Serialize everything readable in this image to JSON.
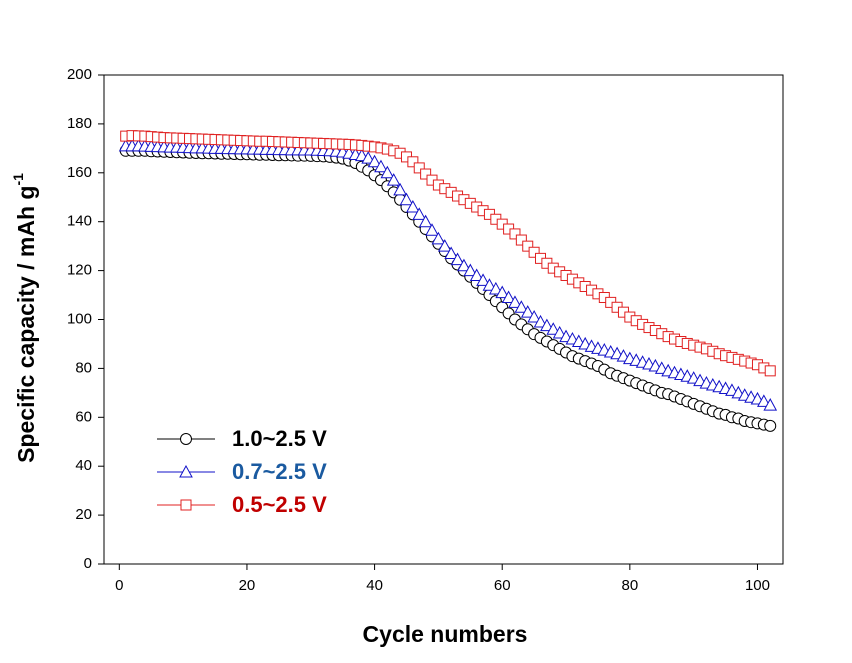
{
  "chart_data": {
    "type": "line",
    "xlabel": "Cycle numbers",
    "ylabel": "Specific capacity / mAh g",
    "ylabel_superscript": "-1",
    "x": [
      1,
      2,
      3,
      4,
      5,
      6,
      7,
      8,
      9,
      10,
      11,
      12,
      13,
      14,
      15,
      16,
      17,
      18,
      19,
      20,
      21,
      22,
      23,
      24,
      25,
      26,
      27,
      28,
      29,
      30,
      31,
      32,
      33,
      34,
      35,
      36,
      37,
      38,
      39,
      40,
      41,
      42,
      43,
      44,
      45,
      46,
      47,
      48,
      49,
      50,
      51,
      52,
      53,
      54,
      55,
      56,
      57,
      58,
      59,
      60,
      61,
      62,
      63,
      64,
      65,
      66,
      67,
      68,
      69,
      70,
      71,
      72,
      73,
      74,
      75,
      76,
      77,
      78,
      79,
      80,
      81,
      82,
      83,
      84,
      85,
      86,
      87,
      88,
      89,
      90,
      91,
      92,
      93,
      94,
      95,
      96,
      97,
      98,
      99,
      100,
      101,
      102
    ],
    "series": [
      {
        "name": "1.0~2.5 V",
        "color": "#000000",
        "label_color": "#000000",
        "marker": "circle",
        "values": [
          169,
          169,
          169,
          169,
          168.8,
          168.7,
          168.6,
          168.5,
          168.4,
          168.3,
          168.2,
          168.1,
          168,
          168,
          167.9,
          167.8,
          167.8,
          167.7,
          167.6,
          167.6,
          167.5,
          167.4,
          167.4,
          167.3,
          167.2,
          167.2,
          167.1,
          167,
          167,
          166.9,
          166.8,
          166.7,
          166.5,
          166.2,
          165.8,
          165,
          164,
          162.5,
          161,
          159,
          157,
          154.5,
          152,
          149,
          146,
          143,
          140,
          137,
          134,
          131,
          128,
          125,
          122.5,
          120,
          117.5,
          115,
          112.5,
          110,
          107.5,
          105,
          102.5,
          100,
          98,
          96,
          94,
          92.5,
          91,
          89.5,
          88,
          86.5,
          85,
          84,
          83,
          82,
          81,
          79.5,
          78,
          77,
          76,
          75,
          74,
          73,
          72,
          71,
          70,
          69.5,
          68.5,
          67.5,
          66.5,
          65.5,
          64.5,
          63.5,
          62.5,
          61.5,
          61,
          60,
          59.5,
          58.5,
          58,
          57.5,
          57,
          56.5
        ]
      },
      {
        "name": "0.7~2.5 V",
        "color": "#1010c8",
        "label_color": "#1a5aa0",
        "marker": "triangle",
        "values": [
          171,
          171,
          171,
          170.9,
          170.8,
          170.7,
          170.6,
          170.5,
          170.5,
          170.4,
          170.3,
          170.2,
          170.2,
          170.1,
          170,
          170,
          169.9,
          169.9,
          169.8,
          169.8,
          169.7,
          169.7,
          169.6,
          169.6,
          169.5,
          169.5,
          169.4,
          169.4,
          169.3,
          169.3,
          169.2,
          169.1,
          169,
          168.8,
          168.5,
          168,
          167.5,
          167,
          166,
          164.5,
          162.5,
          160,
          157,
          153,
          149,
          146,
          143,
          140,
          136.5,
          133,
          130,
          127,
          124.5,
          122,
          120,
          118,
          116,
          114,
          112.5,
          111,
          109,
          107,
          105,
          103,
          101,
          99,
          97.5,
          96,
          94.5,
          93,
          92,
          91,
          90,
          89,
          88.2,
          87.5,
          86.7,
          86,
          85,
          84,
          83.3,
          82.5,
          81.8,
          81,
          80,
          79,
          78.2,
          77.5,
          76.8,
          76,
          75,
          74,
          73.2,
          72.5,
          71.8,
          71,
          70,
          69,
          68.2,
          67.5,
          66.5,
          65
        ]
      },
      {
        "name": "0.5~2.5 V",
        "color": "#e02020",
        "label_color": "#c00000",
        "marker": "square",
        "values": [
          175,
          175.2,
          175.1,
          175,
          174.8,
          174.6,
          174.4,
          174.3,
          174.2,
          174.1,
          174,
          173.9,
          173.8,
          173.7,
          173.6,
          173.5,
          173.4,
          173.3,
          173.2,
          173.1,
          173,
          172.9,
          172.9,
          172.8,
          172.7,
          172.6,
          172.5,
          172.4,
          172.3,
          172.2,
          172.1,
          172,
          171.9,
          171.8,
          171.7,
          171.6,
          171.4,
          171.2,
          170.9,
          170.6,
          170.2,
          169.7,
          169,
          168,
          166.5,
          164.5,
          162,
          159.5,
          157,
          155,
          153.5,
          152,
          150.5,
          149,
          147.5,
          146,
          144.5,
          143,
          141,
          139,
          137,
          135,
          132.5,
          130,
          127.5,
          125,
          123,
          121,
          119.5,
          118,
          116.5,
          115,
          113.5,
          112,
          110.5,
          109,
          107,
          105,
          103,
          101,
          99.5,
          98,
          96.7,
          95.5,
          94.2,
          93,
          92,
          91,
          90.2,
          89.5,
          88.7,
          88,
          87,
          86,
          85.2,
          84.5,
          83.7,
          83,
          82.2,
          81.5,
          80.2,
          79
        ]
      }
    ],
    "xlim": [
      -2.4,
      104
    ],
    "xticks": [
      0,
      20,
      40,
      60,
      80,
      100
    ],
    "ylim": [
      0,
      200
    ],
    "yticks": [
      0,
      20,
      40,
      60,
      80,
      100,
      120,
      140,
      160,
      180,
      200
    ],
    "grid": false,
    "legend": "lower left"
  }
}
